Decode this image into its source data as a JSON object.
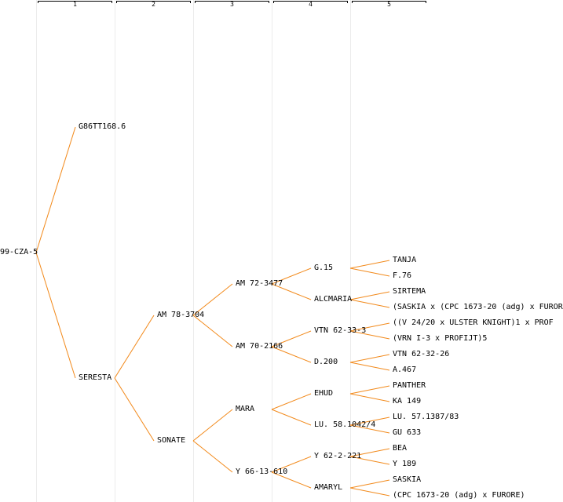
{
  "columns": [
    "1",
    "2",
    "3",
    "4",
    "5"
  ],
  "pedigree": {
    "root": "99-CZA-5",
    "g1": [
      "G86TT168.6",
      "SERESTA"
    ],
    "g2": [
      "AM 78-3704",
      "SONATE"
    ],
    "g3": [
      "AM 72-3477",
      "AM 70-2166",
      "MARA",
      "Y 66-13-610"
    ],
    "g4": [
      "G.15",
      "ALCMARIA",
      "VTN 62-33-3",
      "D.200",
      "EHUD",
      "LU. 58.1042/4",
      "Y 62-2-221",
      "AMARYL"
    ],
    "g5": [
      "TANJA",
      "F.76",
      "SIRTEMA",
      "(SASKIA x (CPC 1673-20 (adg) x FUROR",
      "((V 24/20 x ULSTER KNIGHT)1 x PROF",
      "(VRN I-3 x PROFIJT)5",
      "VTN 62-32-26",
      "A.467",
      "PANTHER",
      "KA 149",
      "LU. 57.1387/83",
      "GU 633",
      "BEA",
      "Y 189",
      "SASKIA",
      "(CPC 1673-20 (adg) x FURORE)"
    ]
  },
  "colors": {
    "edge": "#f28a1c",
    "gridline": "#ececec",
    "text": "#000000"
  }
}
